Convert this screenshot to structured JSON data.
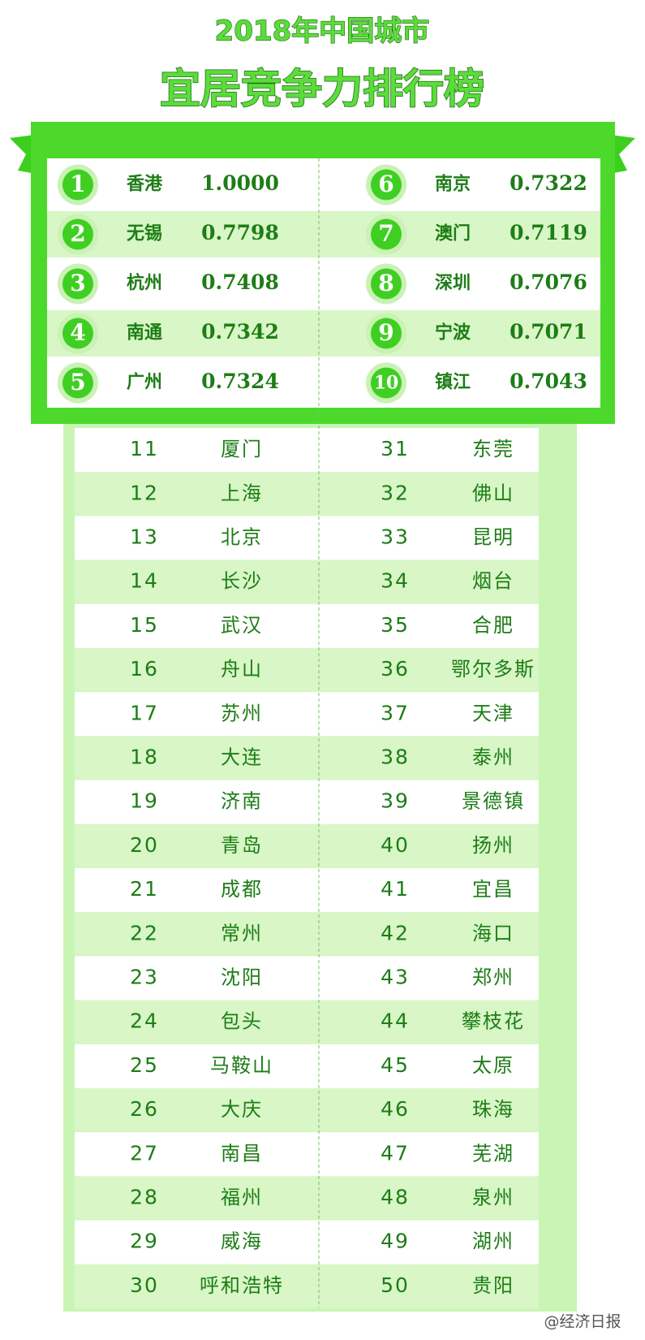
{
  "title": {
    "line1": "2018年中国城市",
    "line2": "宜居竞争力排行榜"
  },
  "top10": [
    {
      "rank": "1",
      "city": "香港",
      "score": "1.0000"
    },
    {
      "rank": "2",
      "city": "无锡",
      "score": "0.7798"
    },
    {
      "rank": "3",
      "city": "杭州",
      "score": "0.7408"
    },
    {
      "rank": "4",
      "city": "南通",
      "score": "0.7342"
    },
    {
      "rank": "5",
      "city": "广州",
      "score": "0.7324"
    },
    {
      "rank": "6",
      "city": "南京",
      "score": "0.7322"
    },
    {
      "rank": "7",
      "city": "澳门",
      "score": "0.7119"
    },
    {
      "rank": "8",
      "city": "深圳",
      "score": "0.7076"
    },
    {
      "rank": "9",
      "city": "宁波",
      "score": "0.7071"
    },
    {
      "rank": "10",
      "city": "镇江",
      "score": "0.7043"
    }
  ],
  "table": {
    "rows": [
      [
        [
          "11",
          "厦门"
        ],
        [
          "31",
          "东莞"
        ]
      ],
      [
        [
          "12",
          "上海"
        ],
        [
          "32",
          "佛山"
        ]
      ],
      [
        [
          "13",
          "北京"
        ],
        [
          "33",
          "昆明"
        ]
      ],
      [
        [
          "14",
          "长沙"
        ],
        [
          "34",
          "烟台"
        ]
      ],
      [
        [
          "15",
          "武汉"
        ],
        [
          "35",
          "合肥"
        ]
      ],
      [
        [
          "16",
          "舟山"
        ],
        [
          "36",
          "鄂尔多斯"
        ]
      ],
      [
        [
          "17",
          "苏州"
        ],
        [
          "37",
          "天津"
        ]
      ],
      [
        [
          "18",
          "大连"
        ],
        [
          "38",
          "泰州"
        ]
      ],
      [
        [
          "19",
          "济南"
        ],
        [
          "39",
          "景德镇"
        ]
      ],
      [
        [
          "20",
          "青岛"
        ],
        [
          "40",
          "扬州"
        ]
      ],
      [
        [
          "21",
          "成都"
        ],
        [
          "41",
          "宜昌"
        ]
      ],
      [
        [
          "22",
          "常州"
        ],
        [
          "42",
          "海口"
        ]
      ],
      [
        [
          "23",
          "沈阳"
        ],
        [
          "43",
          "郑州"
        ]
      ],
      [
        [
          "24",
          "包头"
        ],
        [
          "44",
          "攀枝花"
        ]
      ],
      [
        [
          "25",
          "马鞍山"
        ],
        [
          "45",
          "太原"
        ]
      ],
      [
        [
          "26",
          "大庆"
        ],
        [
          "46",
          "珠海"
        ]
      ],
      [
        [
          "27",
          "南昌"
        ],
        [
          "47",
          "芜湖"
        ]
      ],
      [
        [
          "28",
          "福州"
        ],
        [
          "48",
          "泉州"
        ]
      ],
      [
        [
          "29",
          "威海"
        ],
        [
          "49",
          "湖州"
        ]
      ],
      [
        [
          "30",
          "呼和浩特"
        ],
        [
          "50",
          "贵阳"
        ]
      ]
    ]
  },
  "watermark": "@经济日报"
}
